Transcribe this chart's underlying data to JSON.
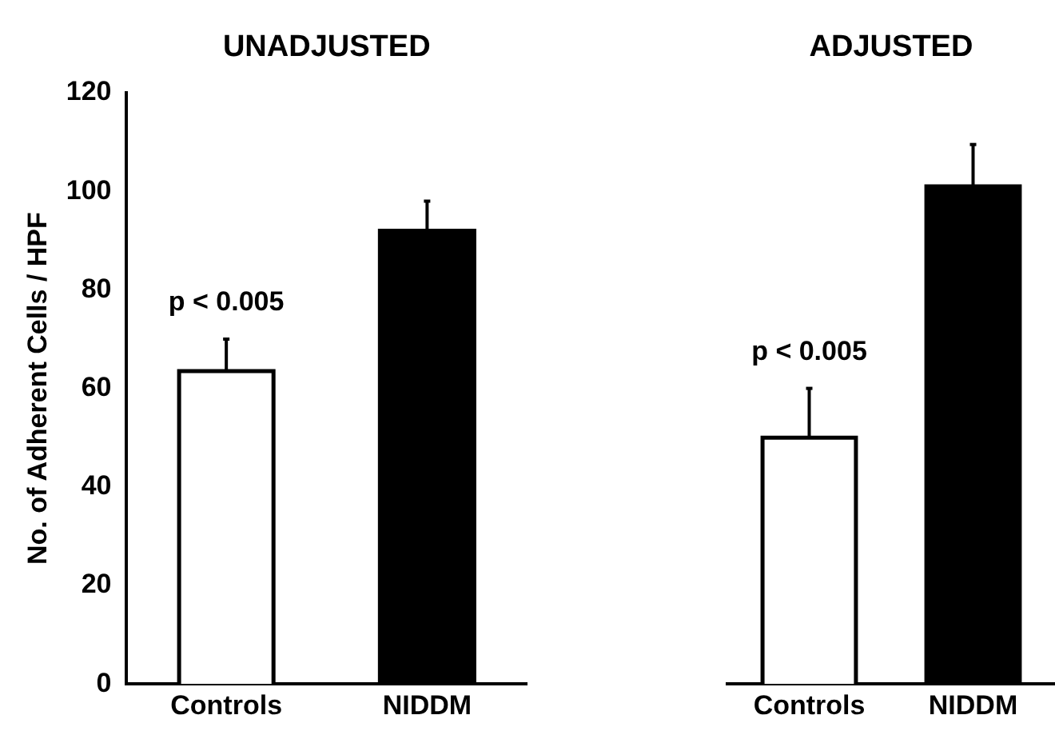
{
  "chart_data": [
    {
      "type": "bar",
      "title": "UNADJUSTED",
      "ylabel": "No. of Adherent Cells / HPF",
      "categories": [
        "Controls",
        "NIDDM"
      ],
      "values": [
        63.5,
        92
      ],
      "colors": [
        "#ffffff",
        "#000000"
      ],
      "errors": [
        [
          63.5,
          70
        ],
        [
          92,
          98
        ]
      ],
      "ylim": [
        0,
        120
      ],
      "yticks": [
        0,
        20,
        40,
        60,
        80,
        100,
        120
      ],
      "grid": false,
      "legend": false,
      "annotations": [
        {
          "text": "p < 0.005",
          "x": "Controls",
          "y": 70
        }
      ]
    },
    {
      "type": "bar",
      "title": "ADJUSTED",
      "categories": [
        "Controls",
        "NIDDM"
      ],
      "values": [
        50,
        101
      ],
      "colors": [
        "#ffffff",
        "#000000"
      ],
      "errors": [
        [
          50,
          60
        ],
        [
          101,
          109.5
        ]
      ],
      "ylim": [
        0,
        120
      ],
      "yticks": [
        0,
        20,
        40,
        60,
        80,
        100,
        120
      ],
      "grid": false,
      "legend": false,
      "tick_labels": "x",
      "annotations": [
        {
          "text": "p < 0.005",
          "x": "Controls",
          "y": 60
        }
      ]
    }
  ]
}
